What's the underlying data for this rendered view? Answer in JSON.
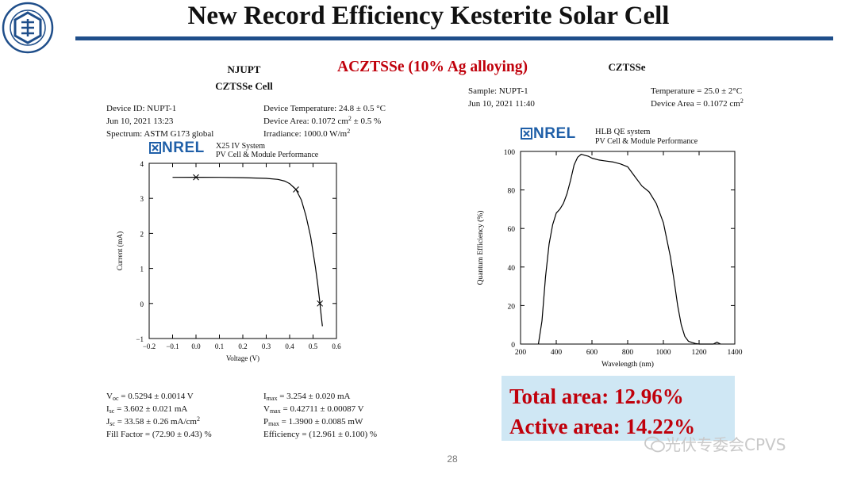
{
  "slide": {
    "title": "New Record Efficiency Kesterite Solar Cell",
    "subtitle": "ACZTSSe (10% Ag alloying)",
    "page_number": "28",
    "watermark": "光伏专委会CPVS",
    "logo": {
      "text": "南京邮电大学"
    }
  },
  "iv_panel": {
    "header_line1": "NJUPT",
    "header_line2": "CZTSSe Cell",
    "device_id": "Device ID: NUPT-1",
    "date": "Jun 10, 2021 13:23",
    "spectrum": "Spectrum: ASTM G173 global",
    "device_temperature": "Device Temperature: 24.8 ± 0.5 °C",
    "device_area_prefix": "Device Area: 0.1072 cm",
    "device_area_suffix": " ± 0.5 %",
    "irradiance_prefix": "Irradiance: 1000.0 W/m",
    "nrel_word": "NREL",
    "system_line1": "X25 IV System",
    "system_line2": "PV Cell & Module Performance",
    "results": {
      "voc": " = 0.5294 ± 0.0014 V",
      "isc": " = 3.602 ± 0.021 mA",
      "jsc": " = 33.58 ± 0.26 mA/cm",
      "ff": "Fill Factor = (72.90 ± 0.43) %",
      "imax": " = 3.254 ± 0.020 mA",
      "vmax": " = 0.42711 ± 0.00087 V",
      "pmax": " = 1.3900 ± 0.0085 mW",
      "efficiency": "Efficiency = (12.961 ± 0.100) %"
    }
  },
  "qe_panel": {
    "header": "CZTSSe",
    "sample": "Sample: NUPT-1",
    "date": "Jun 10, 2021 11:40",
    "temperature": "Temperature = 25.0 ± 2°C",
    "device_area_prefix": "Device Area = 0.1072 cm",
    "nrel_word": "NREL",
    "system_line1": "HLB QE system",
    "system_line2": "PV Cell & Module Performance"
  },
  "efficiency_box": {
    "total": "Total area: 12.96%",
    "active": "Active area: 14.22%"
  },
  "chart_data": [
    {
      "type": "line",
      "xlabel": "Voltage (V)",
      "ylabel": "Current (mA)",
      "xlim": [
        -0.2,
        0.6
      ],
      "ylim": [
        -1,
        4
      ],
      "x_ticks": [
        "−0.2",
        "−0.1",
        "0.0",
        "0.1",
        "0.2",
        "0.3",
        "0.4",
        "0.5",
        "0.6"
      ],
      "y_ticks": [
        "−1",
        "0",
        "1",
        "2",
        "3",
        "4"
      ],
      "grid": false,
      "x": [
        -0.1,
        0.0,
        0.1,
        0.2,
        0.3,
        0.35,
        0.38,
        0.4,
        0.42711,
        0.45,
        0.47,
        0.49,
        0.51,
        0.52,
        0.5294,
        0.535,
        0.54
      ],
      "y": [
        3.6,
        3.602,
        3.6,
        3.59,
        3.57,
        3.54,
        3.49,
        3.42,
        3.254,
        2.95,
        2.5,
        1.9,
        1.05,
        0.55,
        0.0,
        -0.35,
        -0.65
      ],
      "markers": [
        {
          "x": 0.0,
          "y": 3.602
        },
        {
          "x": 0.42711,
          "y": 3.254
        },
        {
          "x": 0.5294,
          "y": 0.0
        }
      ]
    },
    {
      "type": "line",
      "xlabel": "Wavelength (nm)",
      "ylabel": "Quantum Efficiency (%)",
      "xlim": [
        200,
        1400
      ],
      "ylim": [
        0,
        100
      ],
      "x_ticks": [
        "200",
        "400",
        "600",
        "800",
        "1000",
        "1200",
        "1400"
      ],
      "y_ticks": [
        "0",
        "20",
        "40",
        "60",
        "80",
        "100"
      ],
      "grid": false,
      "x": [
        300,
        320,
        340,
        360,
        380,
        400,
        420,
        440,
        460,
        480,
        500,
        520,
        540,
        560,
        580,
        600,
        640,
        680,
        720,
        760,
        800,
        840,
        880,
        920,
        960,
        1000,
        1040,
        1060,
        1080,
        1100,
        1120,
        1140,
        1160,
        1180,
        1200,
        1240,
        1280,
        1300,
        1320
      ],
      "y": [
        0,
        12,
        35,
        52,
        62,
        68,
        70,
        73,
        78,
        85,
        93,
        97,
        98.5,
        98,
        97.5,
        96.5,
        95.5,
        95,
        94.5,
        93.5,
        92,
        87,
        82,
        79,
        73,
        63,
        45,
        33,
        20,
        10,
        4,
        1.5,
        0.8,
        0.3,
        0,
        0,
        0,
        1,
        0
      ]
    }
  ]
}
